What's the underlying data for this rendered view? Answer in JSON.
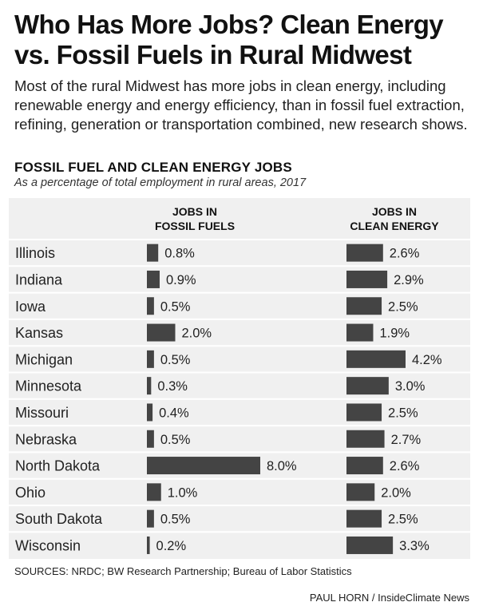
{
  "title": "Who Has More Jobs? Clean Energy vs. Fossil Fuels in Rural Midwest",
  "intro": "Most of the rural Midwest has more jobs in clean energy, including renewable energy and energy efficiency, than in fossil fuel extraction, refining, generation or transportation combined, new research shows.",
  "chart_data": {
    "type": "bar",
    "title": "FOSSIL FUEL AND CLEAN ENERGY JOBS",
    "subtitle": "As a percentage of total employment in rural areas, 2017",
    "categories": [
      "Illinois",
      "Indiana",
      "Iowa",
      "Kansas",
      "Michigan",
      "Minnesota",
      "Missouri",
      "Nebraska",
      "North Dakota",
      "Ohio",
      "South Dakota",
      "Wisconsin"
    ],
    "series": [
      {
        "name": "JOBS IN FOSSIL FUELS",
        "values": [
          0.8,
          0.9,
          0.5,
          2.0,
          0.5,
          0.3,
          0.4,
          0.5,
          8.0,
          1.0,
          0.5,
          0.2
        ],
        "labels": [
          "0.8%",
          "0.9%",
          "0.5%",
          "2.0%",
          "0.5%",
          "0.3%",
          "0.4%",
          "0.5%",
          "8.0%",
          "1.0%",
          "0.5%",
          "0.2%"
        ]
      },
      {
        "name": "JOBS IN CLEAN ENERGY",
        "values": [
          2.6,
          2.9,
          2.5,
          1.9,
          4.2,
          3.0,
          2.5,
          2.7,
          2.6,
          2.0,
          2.5,
          3.3
        ],
        "labels": [
          "2.6%",
          "2.9%",
          "2.5%",
          "1.9%",
          "4.2%",
          "3.0%",
          "2.5%",
          "2.7%",
          "2.6%",
          "2.0%",
          "2.5%",
          "3.3%"
        ]
      }
    ],
    "colors": {
      "bar": "#444444",
      "panel": "#f0f0f0",
      "divider": "#ffffff"
    }
  },
  "column_heads": {
    "fossil": [
      "JOBS IN",
      "FOSSIL FUELS"
    ],
    "clean": [
      "JOBS IN",
      "CLEAN ENERGY"
    ]
  },
  "sources": "SOURCES: NRDC; BW Research Partnership; Bureau of Labor Statistics",
  "credit": "PAUL HORN / InsideClimate News"
}
